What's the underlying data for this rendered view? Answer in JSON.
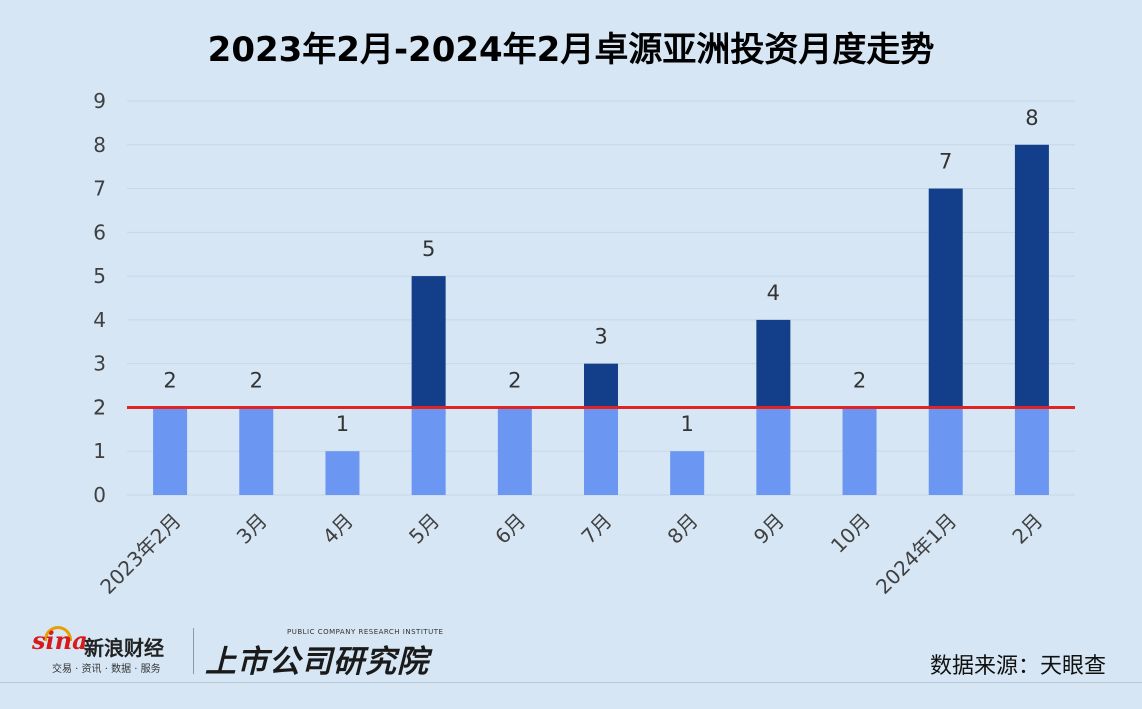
{
  "chart_data": {
    "type": "bar",
    "title": "2023年2月-2024年2月卓源亚洲投资月度走势",
    "categories": [
      "2023年2月",
      "3月",
      "4月",
      "5月",
      "6月",
      "7月",
      "8月",
      "9月",
      "10月",
      "2024年1月",
      "2月"
    ],
    "values": [
      2,
      2,
      1,
      5,
      2,
      3,
      1,
      4,
      2,
      7,
      8
    ],
    "reference_line": 2,
    "ylim": [
      0,
      9
    ],
    "yticks": [
      "0",
      "1",
      "2",
      "2",
      "3",
      "4",
      "5",
      "6",
      "7",
      "8",
      "9"
    ],
    "grid": true,
    "legend": "none",
    "colors": {
      "base": "#6b96f2",
      "above": "#133e8a",
      "reference_line": "#e02424",
      "grid": "#c6d7e6"
    }
  },
  "branding": {
    "sina_logo": "sina",
    "sina_name": "新浪财经",
    "sina_sub": "交易 · 资讯 · 数据 · 服务",
    "institute_en": "PUBLIC COMPANY RESEARCH INSTITUTE",
    "institute_cn": "上市公司研究院"
  },
  "source": "数据来源：天眼查"
}
